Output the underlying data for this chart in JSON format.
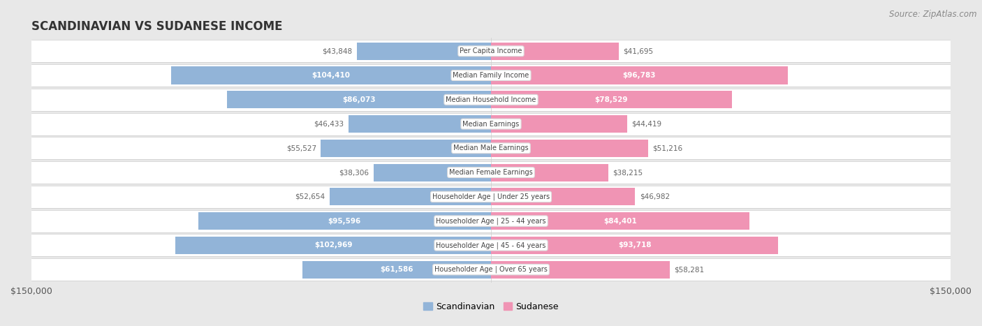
{
  "title": "SCANDINAVIAN VS SUDANESE INCOME",
  "source": "Source: ZipAtlas.com",
  "categories": [
    "Per Capita Income",
    "Median Family Income",
    "Median Household Income",
    "Median Earnings",
    "Median Male Earnings",
    "Median Female Earnings",
    "Householder Age | Under 25 years",
    "Householder Age | 25 - 44 years",
    "Householder Age | 45 - 64 years",
    "Householder Age | Over 65 years"
  ],
  "scandinavian_values": [
    43848,
    104410,
    86073,
    46433,
    55527,
    38306,
    52654,
    95596,
    102969,
    61586
  ],
  "sudanese_values": [
    41695,
    96783,
    78529,
    44419,
    51216,
    38215,
    46982,
    84401,
    93718,
    58281
  ],
  "scandinavian_color": "#92b4d8",
  "sudanese_color": "#f094b4",
  "bar_label_inside_color": "#ffffff",
  "bar_label_outside_color": "#666666",
  "inside_threshold": 60000,
  "xlim": 150000,
  "legend_labels": [
    "Scandinavian",
    "Sudanese"
  ],
  "background_color": "#e8e8e8",
  "row_bg_color": "#ffffff",
  "title_fontsize": 12,
  "source_fontsize": 8.5,
  "bar_height": 0.72,
  "figsize": [
    14.06,
    4.67
  ],
  "dpi": 100
}
